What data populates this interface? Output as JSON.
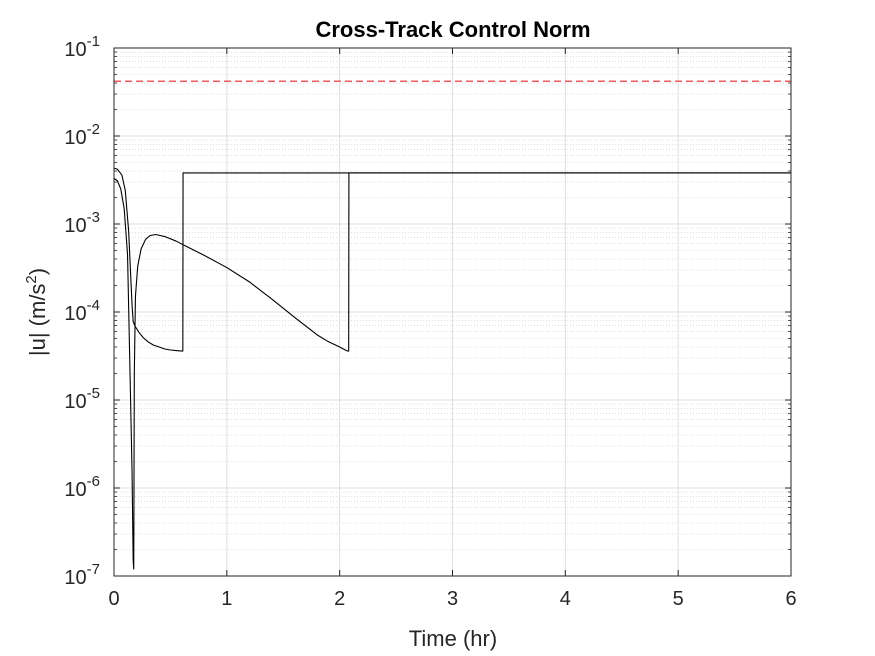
{
  "chart_data": {
    "type": "line",
    "title": "Cross-Track Control Norm",
    "xlabel": "Time (hr)",
    "ylabel": "|u| (m/s²)",
    "ylabel_base": "|u| (m/s",
    "ylabel_sup": "2",
    "ylabel_close": ")",
    "xlim": [
      0,
      6
    ],
    "ylim": [
      1e-07,
      0.1
    ],
    "yscale": "log",
    "grid": true,
    "minor_grid": true,
    "x_ticks": [
      0,
      1,
      2,
      3,
      4,
      5,
      6
    ],
    "x_tick_labels": [
      "0",
      "1",
      "2",
      "3",
      "4",
      "5",
      "6"
    ],
    "y_ticks": [
      1e-07,
      1e-06,
      1e-05,
      0.0001,
      0.001,
      0.01,
      0.1
    ],
    "y_tick_labels": [
      {
        "base": "10",
        "exp": "-7"
      },
      {
        "base": "10",
        "exp": "-6"
      },
      {
        "base": "10",
        "exp": "-5"
      },
      {
        "base": "10",
        "exp": "-4"
      },
      {
        "base": "10",
        "exp": "-3"
      },
      {
        "base": "10",
        "exp": "-2"
      },
      {
        "base": "10",
        "exp": "-1"
      }
    ],
    "series": [
      {
        "color": "#000000",
        "style": "solid",
        "x": [
          0,
          0.03,
          0.07,
          0.1,
          0.13,
          0.16,
          0.17,
          0.175,
          0.18,
          0.19,
          0.22,
          0.26,
          0.3,
          0.35,
          0.4,
          0.45,
          0.5,
          0.55,
          0.6,
          0.61,
          0.612,
          1.0,
          2.0,
          2.08,
          2.082,
          6.0
        ],
        "y": [
          0.0043,
          0.0042,
          0.0036,
          0.0024,
          0.00082,
          0.00012,
          7.8e-05,
          7.5e-05,
          7.2e-05,
          6.8e-05,
          5.9e-05,
          5.1e-05,
          4.6e-05,
          4.2e-05,
          4e-05,
          3.8e-05,
          3.7e-05,
          3.65e-05,
          3.6e-05,
          3.6e-05,
          0.0038,
          0.0038,
          0.0038,
          0.0038,
          0.0038,
          0.0038
        ]
      },
      {
        "color": "#000000",
        "style": "solid",
        "x": [
          0,
          0.03,
          0.06,
          0.09,
          0.12,
          0.15,
          0.16,
          0.17,
          0.175,
          0.18,
          0.19,
          0.21,
          0.24,
          0.28,
          0.32,
          0.37,
          0.45,
          0.55,
          0.65,
          0.8,
          1.0,
          1.2,
          1.4,
          1.6,
          1.8,
          1.9,
          2.0,
          2.05,
          2.07,
          2.075,
          2.08,
          2.082,
          6.0
        ],
        "y": [
          0.0033,
          0.0031,
          0.0025,
          0.0015,
          0.00045,
          6.5e-06,
          1.5e-06,
          1.5e-07,
          1.2e-07,
          2e-05,
          0.00015,
          0.00033,
          0.00052,
          0.00067,
          0.00074,
          0.00076,
          0.00072,
          0.00064,
          0.00055,
          0.00044,
          0.00032,
          0.00022,
          0.00014,
          8.7e-05,
          5.5e-05,
          4.6e-05,
          4e-05,
          3.7e-05,
          3.6e-05,
          3.6e-05,
          3.6e-05,
          0.0038,
          0.0038
        ]
      }
    ],
    "reference_line": {
      "y": 0.042,
      "color": "#e8262f",
      "style": "dashed"
    },
    "colors": {
      "axis": "#262626",
      "grid": "#dfdfdf",
      "minor_grid": "#c8c8c8",
      "line": "#000000"
    }
  }
}
